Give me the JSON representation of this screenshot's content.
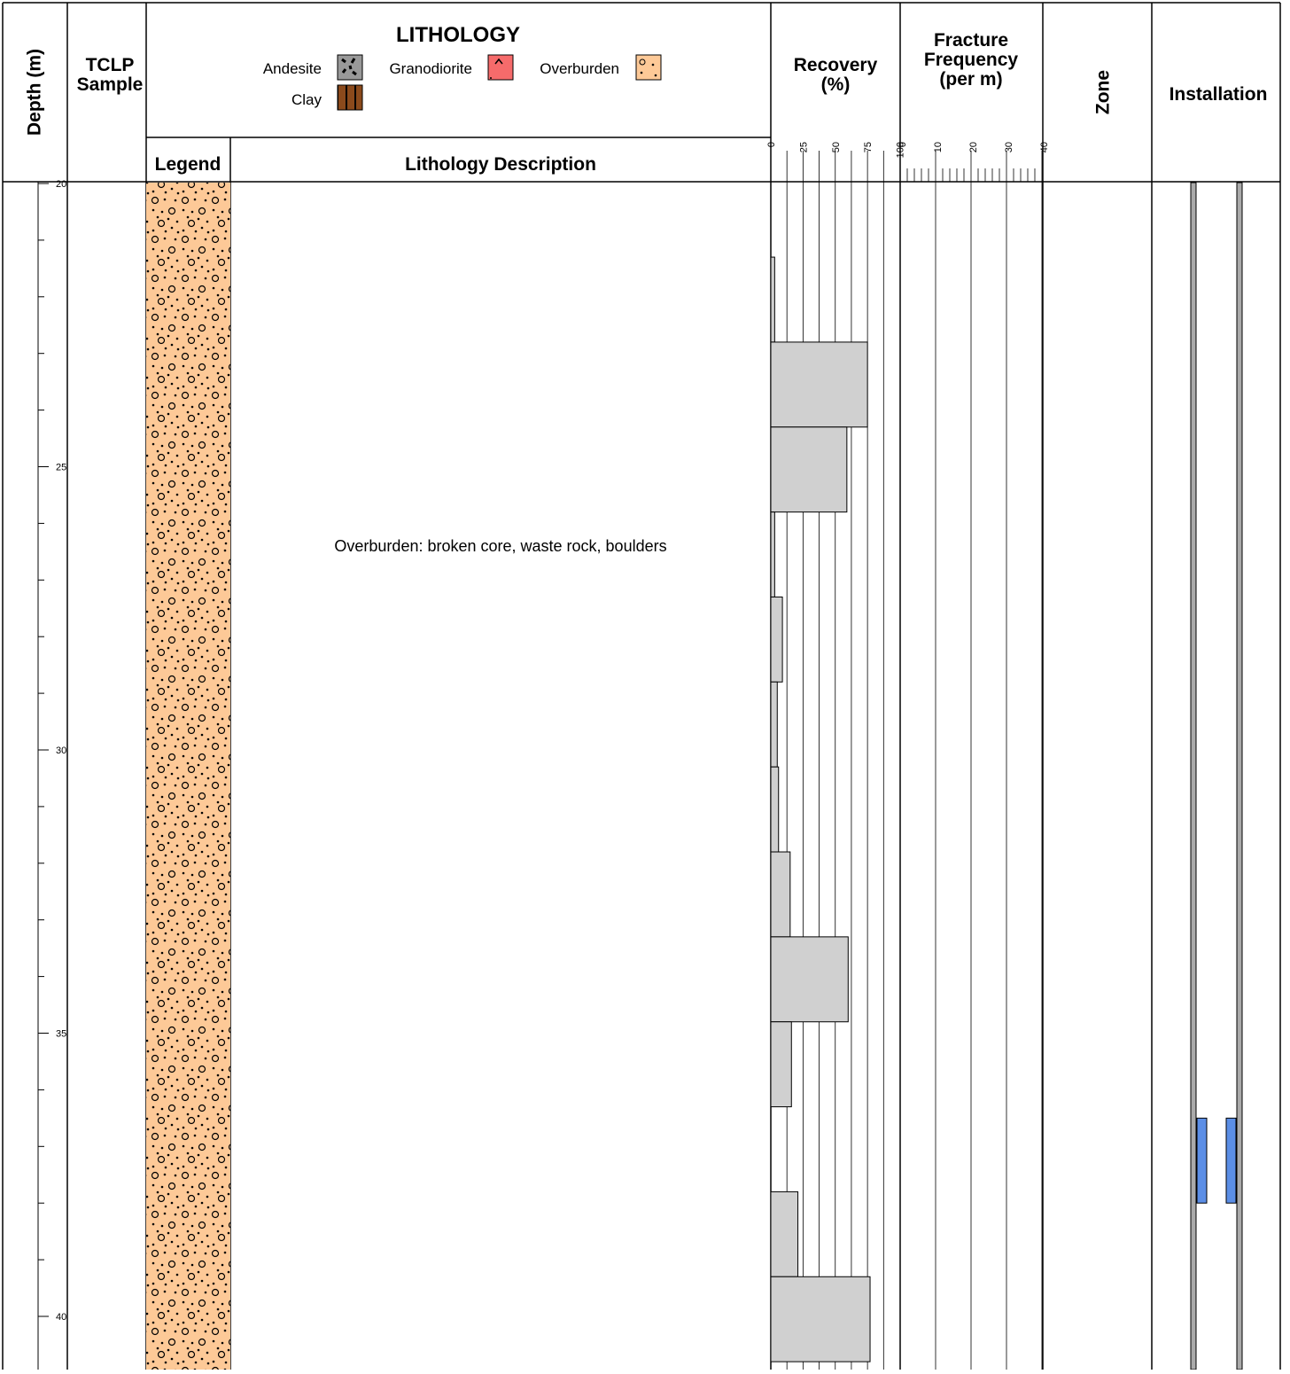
{
  "headers": {
    "depth": "Depth (m)",
    "tclp": [
      "TCLP",
      "Sample"
    ],
    "lithology": "LITHOLOGY",
    "legend": "Legend",
    "description_header": "Lithology Description",
    "recovery": [
      "Recovery",
      "(%)"
    ],
    "fracture": [
      "Fracture",
      "Frequency",
      "(per m)"
    ],
    "zone": "Zone",
    "installation": "Installation"
  },
  "lithology_legend": [
    "Andesite",
    "Granodiorite",
    "Overburden",
    "Clay"
  ],
  "description": "Overburden: broken core, waste rock, boulders",
  "chart_data": {
    "type": "bar",
    "ylim": [
      20,
      40.95
    ],
    "yticks": [
      20,
      25,
      30,
      35,
      40
    ],
    "minor_yticks": [
      21,
      22,
      23,
      24,
      26,
      27,
      28,
      29,
      31,
      32,
      33,
      34,
      36,
      37,
      38,
      39
    ],
    "from": [
      21.3,
      22.8,
      24.3,
      25.8,
      27.3,
      28.8,
      30.3,
      31.8,
      33.3,
      34.8,
      37.8,
      39.3
    ],
    "to": [
      22.8,
      24.3,
      25.8,
      27.3,
      28.8,
      30.3,
      31.8,
      33.3,
      34.8,
      36.3,
      39.3,
      40.8
    ],
    "values": [
      3,
      75,
      59,
      3,
      9,
      5,
      6,
      15,
      60,
      16,
      21,
      77
    ],
    "color": "#d0d0d0",
    "xlim": [
      0,
      100
    ],
    "xticks": [
      0,
      25,
      50,
      75,
      100
    ],
    "xgrid": [
      12.5,
      25,
      37.5,
      50,
      62.5,
      75,
      87.5
    ],
    "fracture_xlim": [
      0,
      40
    ],
    "fracture_xticks": [
      0,
      10,
      20,
      30,
      40
    ],
    "fracture_minor": [
      2,
      4,
      6,
      8,
      12,
      14,
      16,
      18,
      22,
      24,
      26,
      28,
      32,
      34,
      36,
      38
    ],
    "screen": [
      36.5,
      38.0
    ],
    "screen_color": "#5b8ee6"
  }
}
